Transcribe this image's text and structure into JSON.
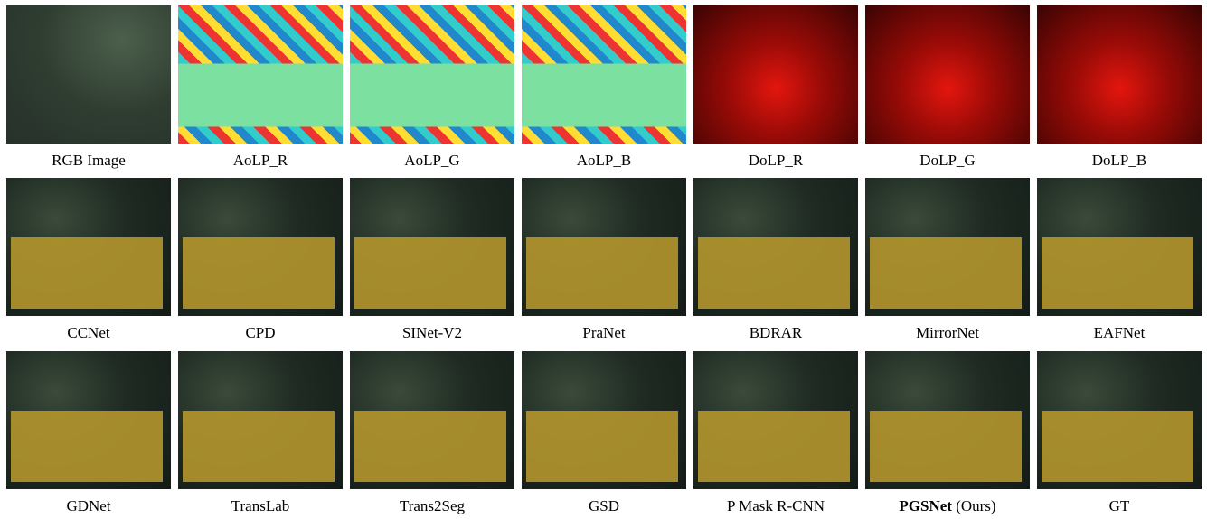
{
  "rows": [
    [
      "RGB Image",
      "AoLP_R",
      "AoLP_G",
      "AoLP_B",
      "DoLP_R",
      "DoLP_G",
      "DoLP_B"
    ],
    [
      "CCNet",
      "CPD",
      "SINet-V2",
      "PraNet",
      "BDRAR",
      "MirrorNet",
      "EAFNet"
    ],
    [
      "GDNet",
      "TransLab",
      "Trans2Seg",
      "GSD",
      "P Mask R-CNN",
      {
        "bold": "PGSNet",
        "text": "(Ours)"
      },
      "GT"
    ]
  ]
}
